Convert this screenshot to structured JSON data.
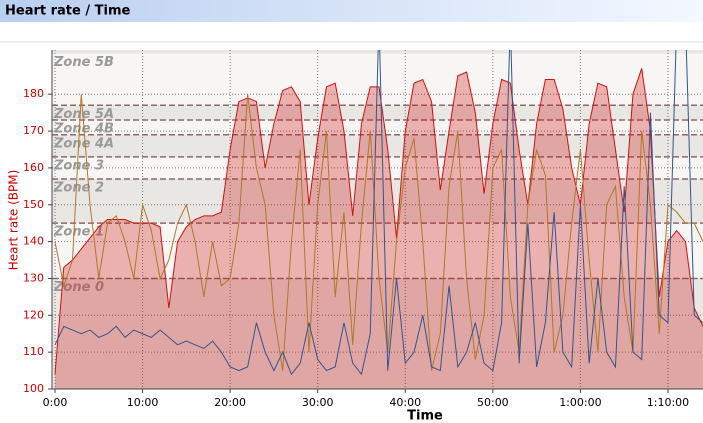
{
  "chart_data": {
    "type": "line",
    "title": "Heart rate / Time",
    "ylabel": "Heart rate (BPM)",
    "xlabel": "Time",
    "x": [
      0,
      1,
      2,
      3,
      4,
      5,
      6,
      7,
      8,
      9,
      10,
      11,
      12,
      13,
      14,
      15,
      16,
      17,
      18,
      19,
      20,
      21,
      22,
      23,
      24,
      25,
      26,
      27,
      28,
      29,
      30,
      31,
      32,
      33,
      34,
      35,
      36,
      37,
      38,
      39,
      40,
      41,
      42,
      43,
      44,
      45,
      46,
      47,
      48,
      49,
      50,
      51,
      52,
      53,
      54,
      55,
      56,
      57,
      58,
      59,
      60,
      61,
      62,
      63,
      64,
      65,
      66,
      67,
      68,
      69,
      70,
      71,
      72,
      73,
      74
    ],
    "series": [
      {
        "color": "#cc1111",
        "area": true,
        "values": [
          104,
          133,
          135,
          138,
          141,
          144,
          146,
          146,
          146,
          145,
          145,
          145,
          144,
          122,
          140,
          144,
          146,
          147,
          147,
          148,
          165,
          178,
          179,
          178,
          160,
          172,
          181,
          182,
          178,
          150,
          168,
          182,
          183,
          170,
          147,
          172,
          182,
          182,
          165,
          141,
          170,
          183,
          184,
          178,
          154,
          170,
          185,
          186,
          175,
          153,
          172,
          184,
          183,
          165,
          150,
          172,
          184,
          184,
          176,
          160,
          150,
          172,
          183,
          182,
          165,
          148,
          180,
          187,
          170,
          125,
          140,
          143,
          140,
          122,
          117
        ]
      },
      {
        "color": "#b07828",
        "values": [
          140,
          128,
          135,
          180,
          150,
          130,
          145,
          147,
          140,
          130,
          150,
          143,
          130,
          135,
          145,
          150,
          140,
          125,
          140,
          128,
          130,
          145,
          180,
          160,
          150,
          120,
          105,
          140,
          165,
          110,
          150,
          170,
          125,
          148,
          112,
          145,
          170,
          130,
          110,
          140,
          160,
          168,
          140,
          105,
          115,
          155,
          170,
          130,
          108,
          120,
          160,
          165,
          125,
          110,
          150,
          165,
          158,
          110,
          120,
          145,
          165,
          135,
          110,
          150,
          155,
          125,
          110,
          170,
          150,
          115,
          150,
          148,
          145,
          145,
          140
        ]
      },
      {
        "color": "#34548e",
        "values": [
          112,
          117,
          116,
          115,
          116,
          114,
          115,
          117,
          114,
          116,
          115,
          114,
          116,
          114,
          112,
          113,
          112,
          111,
          113,
          110,
          106,
          105,
          106,
          118,
          110,
          105,
          110,
          104,
          107,
          118,
          108,
          105,
          106,
          118,
          107,
          104,
          115,
          200,
          105,
          130,
          107,
          110,
          120,
          106,
          105,
          128,
          106,
          110,
          118,
          107,
          105,
          118,
          200,
          107,
          145,
          106,
          118,
          148,
          110,
          106,
          150,
          107,
          130,
          110,
          106,
          155,
          110,
          108,
          175,
          120,
          118,
          200,
          200,
          120,
          118
        ]
      }
    ],
    "xlim": [
      0,
      74
    ],
    "ylim": [
      100,
      192
    ],
    "xticks": [
      {
        "value": 0,
        "label": "0:00"
      },
      {
        "value": 10,
        "label": "10:00"
      },
      {
        "value": 20,
        "label": "20:00"
      },
      {
        "value": 30,
        "label": "30:00"
      },
      {
        "value": 40,
        "label": "40:00"
      },
      {
        "value": 50,
        "label": "50:00"
      },
      {
        "value": 60,
        "label": "1:00:00"
      },
      {
        "value": 70,
        "label": "1:10:00"
      }
    ],
    "yticks": [
      100,
      110,
      120,
      130,
      140,
      150,
      160,
      170,
      180
    ],
    "grid": true,
    "zones": [
      {
        "name": "Zone 0",
        "value": 130
      },
      {
        "name": "Zone 1",
        "value": 145
      },
      {
        "name": "Zone 2",
        "value": 157
      },
      {
        "name": "Zone 3",
        "value": 163
      },
      {
        "name": "Zone 4A",
        "value": 169
      },
      {
        "name": "Zone 4B",
        "value": 173
      },
      {
        "name": "Zone 5A",
        "value": 177
      },
      {
        "name": "Zone 5B",
        "value": 191
      }
    ]
  }
}
